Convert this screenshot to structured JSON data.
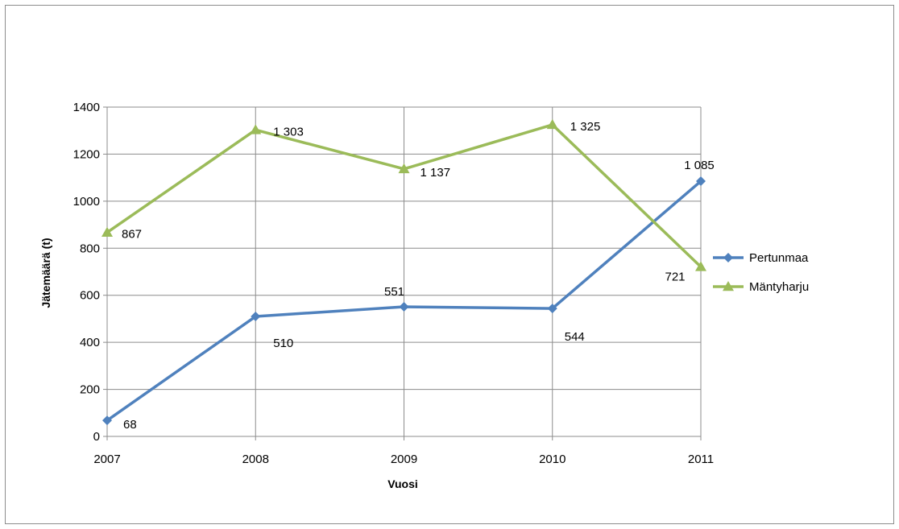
{
  "chart_data": {
    "type": "line",
    "xlabel": "Vuosi",
    "ylabel": "Jätemäärä (t)",
    "x": [
      "2007",
      "2008",
      "2009",
      "2010",
      "2011"
    ],
    "ylim": [
      0,
      1400
    ],
    "yticks": [
      0,
      200,
      400,
      600,
      800,
      1000,
      1200,
      1400
    ],
    "grid": true,
    "legend_position": "right",
    "series": [
      {
        "name": "Pertunmaa",
        "color": "#4F81BD",
        "marker": "diamond",
        "values": [
          68,
          510,
          551,
          544,
          1085
        ],
        "labels": [
          "68",
          "510",
          "551",
          "544",
          "1 085"
        ]
      },
      {
        "name": "Mäntyharju",
        "color": "#9BBB59",
        "marker": "triangle",
        "values": [
          867,
          1303,
          1137,
          1325,
          721
        ],
        "labels": [
          "867",
          "1 303",
          "1 137",
          "1 325",
          "721"
        ]
      }
    ]
  }
}
